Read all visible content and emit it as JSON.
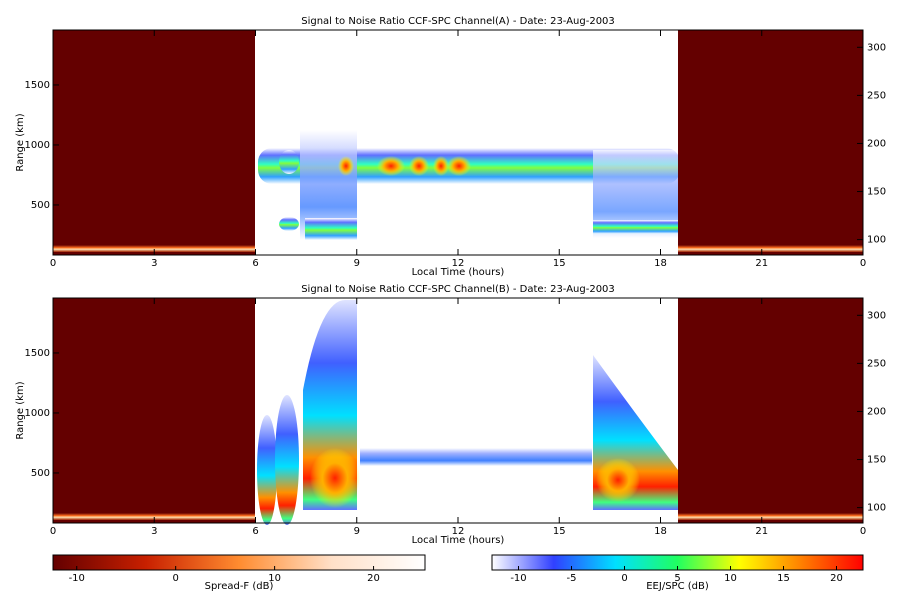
{
  "chart_data": [
    {
      "type": "heatmap",
      "title": "Signal to Noise Ratio CCF-SPC Channel(A) - Date: 23-Aug-2003",
      "xlabel": "Local Time (hours)",
      "ylabel": "Range (km)",
      "xlim": [
        0,
        24
      ],
      "xticks": [
        0,
        3,
        6,
        9,
        12,
        15,
        18,
        21,
        {
          "value": 24,
          "label": "0"
        }
      ],
      "ylim": [
        83,
        1958
      ],
      "yticks": [
        500,
        1000,
        1500
      ],
      "y2lim": [
        84,
        318
      ],
      "y2ticks": [
        100,
        150,
        200,
        250,
        300
      ]
    },
    {
      "type": "heatmap",
      "title": "Signal to Noise Ratio CCF-SPC Channel(B) - Date: 23-Aug-2003",
      "xlabel": "Local Time (hours)",
      "ylabel": "Range (km)",
      "xlim": [
        0,
        24
      ],
      "xticks": [
        0,
        3,
        6,
        9,
        12,
        15,
        18,
        21,
        {
          "value": 24,
          "label": "0"
        }
      ],
      "ylim": [
        83,
        1958
      ],
      "yticks": [
        500,
        1000,
        1500
      ],
      "y2lim": [
        84,
        318
      ],
      "y2ticks": [
        100,
        150,
        200,
        250,
        300
      ]
    }
  ],
  "colorbars": [
    {
      "label": "Spread-F (dB)",
      "lim": [
        -12.4,
        25.2
      ],
      "ticks": [
        -10,
        0,
        10,
        20
      ],
      "colors": [
        "#640000",
        "#c82000",
        "#ff8c30",
        "#ffe0c8",
        "#ffffff"
      ]
    },
    {
      "label": "EEJ/SPC (dB)",
      "lim": [
        -12.5,
        22.5
      ],
      "ticks": [
        -10,
        -5,
        0,
        5,
        10,
        15,
        20
      ],
      "colors": [
        "#ffffff",
        "#3040ff",
        "#00e0ff",
        "#20ff60",
        "#ffff00",
        "#ff8000",
        "#ff0000"
      ]
    }
  ]
}
